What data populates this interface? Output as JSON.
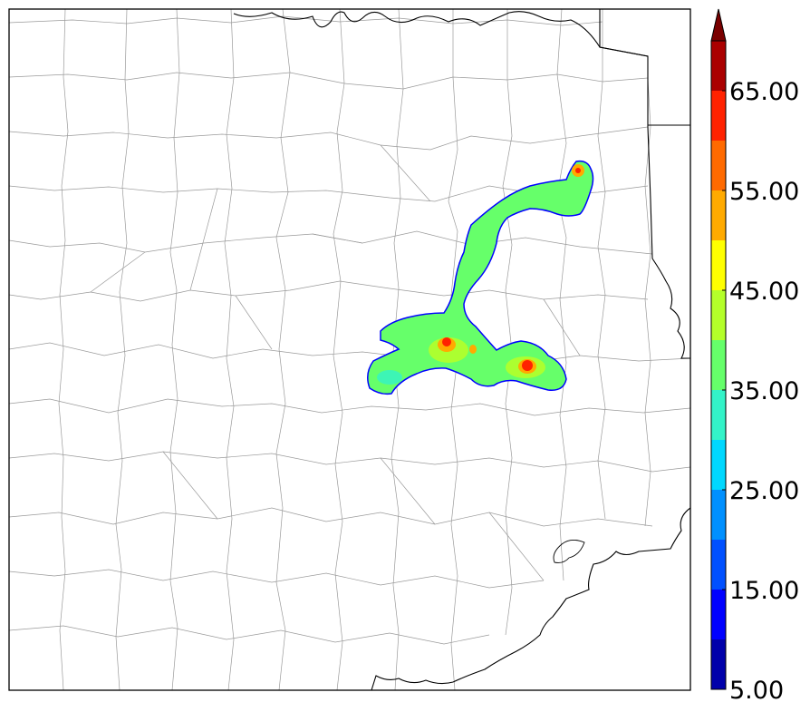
{
  "colorbar": {
    "extend": "max",
    "tick_labels": [
      "5.00",
      "15.00",
      "25.00",
      "35.00",
      "45.00",
      "55.00",
      "65.00"
    ],
    "levels": [
      5,
      10,
      15,
      20,
      25,
      30,
      35,
      40,
      45,
      50,
      55,
      60,
      65,
      70
    ],
    "colors": [
      "#0000aa",
      "#0000ff",
      "#0050ff",
      "#0090ff",
      "#00d8ff",
      "#33f3c8",
      "#66ff6a",
      "#b4ff2a",
      "#ffff00",
      "#ffaa00",
      "#ff6a00",
      "#ff2200",
      "#aa0000"
    ],
    "extend_color": "#7a0000"
  },
  "map": {
    "region": "southeast Texas",
    "county_line_color": "#9a9a9a",
    "state_line_color": "#000000",
    "frame_color": "#000000",
    "field_colors": {
      "outline": "#0000ff",
      "base": "#66ff6a",
      "mid": "#b4ff2a",
      "high": "#ffaa00",
      "core": "#ff2200"
    }
  }
}
